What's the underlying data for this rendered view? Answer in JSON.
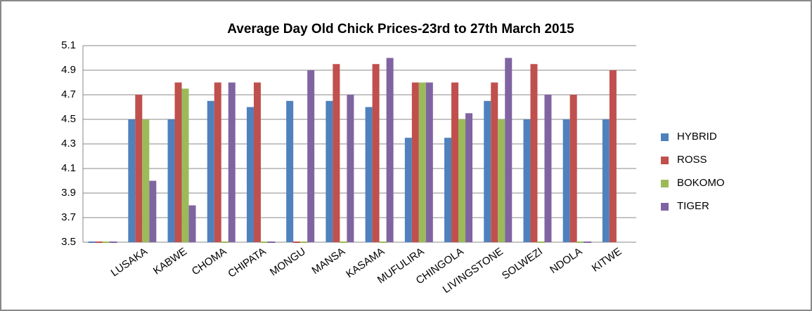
{
  "chart_data": {
    "type": "bar",
    "title": "Average Day Old Chick Prices-23rd to 27th March 2015",
    "categories": [
      null,
      "LUSAKA",
      "KABWE",
      "CHOMA",
      "CHIPATA",
      "MONGU",
      "MANSA",
      "KASAMA",
      "MUFULIRA",
      "CHINGOLA",
      "LIVINGSTONE",
      "SOLWEZI",
      "NDOLA",
      "KITWE"
    ],
    "series": [
      {
        "name": "HYBRID",
        "color": "#4f81bd",
        "values": [
          3.5,
          4.5,
          4.5,
          4.65,
          4.6,
          4.65,
          4.65,
          4.6,
          4.35,
          4.35,
          4.65,
          4.5,
          4.5,
          4.5
        ]
      },
      {
        "name": "ROSS",
        "color": "#c0504d",
        "values": [
          3.5,
          4.7,
          4.8,
          4.8,
          4.8,
          3.5,
          4.95,
          4.95,
          4.8,
          4.8,
          4.8,
          4.95,
          4.7,
          4.9
        ]
      },
      {
        "name": "BOKOMO",
        "color": "#9bbb59",
        "values": [
          3.5,
          4.5,
          4.75,
          3.5,
          3.5,
          3.5,
          3.5,
          3.5,
          4.8,
          4.5,
          4.5,
          3.5,
          3.5,
          null
        ]
      },
      {
        "name": "TIGER",
        "color": "#8064a2",
        "values": [
          3.5,
          4.0,
          3.8,
          4.8,
          3.5,
          4.9,
          4.7,
          5.0,
          4.8,
          4.55,
          5.0,
          4.7,
          3.5,
          null
        ]
      }
    ],
    "ylim": [
      3.5,
      5.1
    ],
    "yticks": [
      3.5,
      3.7,
      3.9,
      4.1,
      4.3,
      4.5,
      4.7,
      4.9,
      5.1
    ],
    "grid": true,
    "legend": "right"
  }
}
